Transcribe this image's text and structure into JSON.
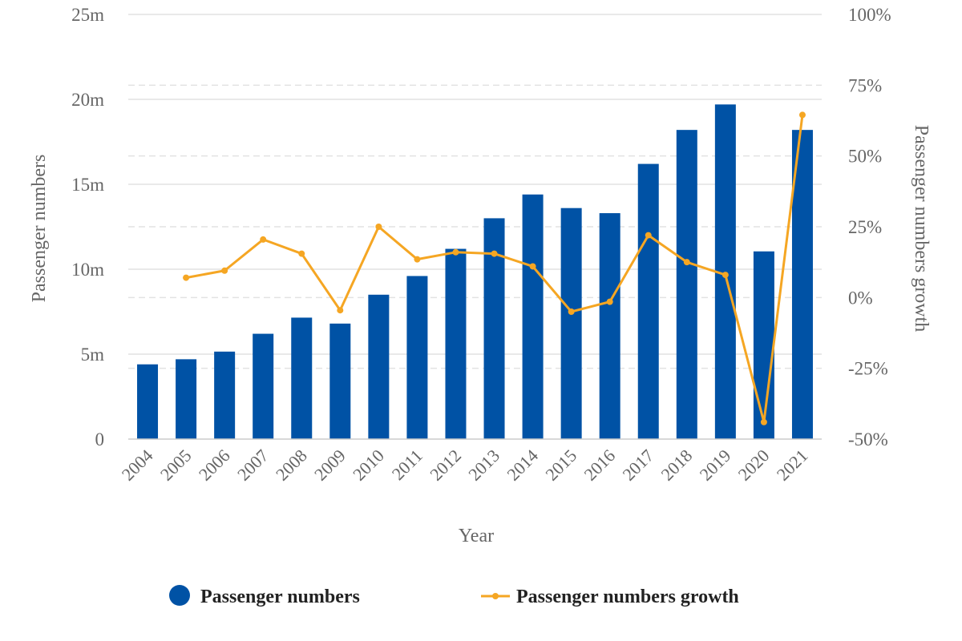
{
  "chart_data": {
    "type": "bar",
    "categories": [
      "2004",
      "2005",
      "2006",
      "2007",
      "2008",
      "2009",
      "2010",
      "2011",
      "2012",
      "2013",
      "2014",
      "2015",
      "2016",
      "2017",
      "2018",
      "2019",
      "2020",
      "2021"
    ],
    "series": [
      {
        "name": "Passenger numbers",
        "type": "bar",
        "axis": "left",
        "color": "#0052a5",
        "values": [
          4.4,
          4.7,
          5.15,
          6.2,
          7.15,
          6.8,
          8.5,
          9.6,
          11.2,
          13.0,
          14.4,
          13.6,
          13.3,
          16.2,
          18.2,
          19.7,
          11.05,
          18.2
        ]
      },
      {
        "name": "Passenger numbers growth",
        "type": "line",
        "axis": "right",
        "color": "#f5a623",
        "values": [
          null,
          7,
          9.5,
          20.5,
          15.5,
          -4.5,
          25,
          13.5,
          16,
          15.5,
          11,
          -5,
          -1.5,
          22,
          12.5,
          8,
          -44,
          64.5
        ]
      }
    ],
    "xlabel": "Year",
    "ylabel": "Passenger numbers",
    "y2label": "Passenger numbers growth",
    "ylim": [
      0,
      25
    ],
    "y2lim": [
      -50,
      100
    ],
    "yticks": [
      "0",
      "5m",
      "10m",
      "15m",
      "20m",
      "25m"
    ],
    "y2ticks": [
      "-50%",
      "-25%",
      "0%",
      "25%",
      "50%",
      "75%",
      "100%"
    ],
    "legend_position": "bottom",
    "grid": true
  }
}
